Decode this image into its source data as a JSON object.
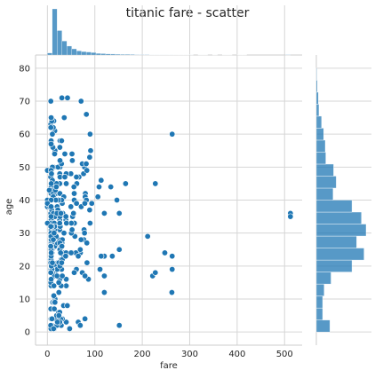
{
  "chart_data": {
    "type": "scatter",
    "title": "titanic fare - scatter",
    "xlabel": "fare",
    "ylabel": "age",
    "xlim": [
      -25,
      537
    ],
    "ylim": [
      -4,
      84
    ],
    "x_ticks": [
      0,
      100,
      200,
      300,
      400,
      500
    ],
    "y_ticks": [
      0,
      10,
      20,
      30,
      40,
      50,
      60,
      70,
      80
    ],
    "grid": true,
    "marginals": [
      "top-histogram-fare",
      "right-histogram-age"
    ],
    "colors": {
      "accent": "#1f77b4",
      "grid": "#d6d6d6",
      "spine": "#cccccc"
    },
    "points": [
      [
        7.25,
        22
      ],
      [
        71.28,
        38
      ],
      [
        7.92,
        26
      ],
      [
        53.1,
        35
      ],
      [
        8.05,
        35
      ],
      [
        51.86,
        54
      ],
      [
        21.08,
        2
      ],
      [
        11.13,
        27
      ],
      [
        30.07,
        14
      ],
      [
        16.7,
        4
      ],
      [
        26.55,
        58
      ],
      [
        8.05,
        20
      ],
      [
        31.28,
        39
      ],
      [
        16,
        55
      ],
      [
        29.13,
        2
      ],
      [
        13,
        31
      ],
      [
        7.23,
        35
      ],
      [
        7.9,
        34
      ],
      [
        263,
        19
      ],
      [
        7.88,
        15
      ],
      [
        146.52,
        40
      ],
      [
        82.17,
        66
      ],
      [
        76.73,
        28
      ],
      [
        80,
        42
      ],
      [
        83.48,
        21
      ],
      [
        73.5,
        18
      ],
      [
        61.18,
        19
      ],
      [
        35.5,
        24
      ],
      [
        263,
        23
      ],
      [
        39.69,
        3
      ],
      [
        56.5,
        40
      ],
      [
        34.38,
        23
      ],
      [
        18,
        42
      ],
      [
        7.23,
        36
      ],
      [
        13,
        32
      ],
      [
        7.83,
        19
      ],
      [
        7.9,
        28
      ],
      [
        22.03,
        3
      ],
      [
        15.5,
        44
      ],
      [
        30,
        58
      ],
      [
        39.69,
        14
      ],
      [
        29.13,
        22
      ],
      [
        26,
        31
      ],
      [
        10.46,
        25
      ],
      [
        27.72,
        45
      ],
      [
        13.79,
        28
      ],
      [
        12.29,
        18
      ],
      [
        7.75,
        42
      ],
      [
        9.35,
        2
      ],
      [
        12.88,
        20
      ],
      [
        13,
        14
      ],
      [
        26.25,
        28
      ],
      [
        7.13,
        30
      ],
      [
        61.98,
        45
      ],
      [
        15.05,
        33
      ],
      [
        21.68,
        21
      ],
      [
        35.5,
        65
      ],
      [
        90,
        33
      ],
      [
        7.8,
        33
      ],
      [
        136.78,
        23
      ],
      [
        247.52,
        24
      ],
      [
        39.69,
        45
      ],
      [
        15.5,
        18
      ],
      [
        7.23,
        7
      ],
      [
        26.25,
        16
      ],
      [
        7.55,
        1
      ],
      [
        7.05,
        2
      ],
      [
        15.85,
        9
      ],
      [
        7.05,
        27
      ],
      [
        31.39,
        4
      ],
      [
        7.78,
        4
      ],
      [
        10.5,
        32
      ],
      [
        29,
        14
      ],
      [
        151.55,
        2
      ],
      [
        151.55,
        25
      ],
      [
        221.78,
        17
      ],
      [
        78.85,
        4
      ],
      [
        26.55,
        50
      ],
      [
        14.45,
        1
      ],
      [
        8.05,
        44
      ],
      [
        133.65,
        44
      ],
      [
        13.42,
        11
      ],
      [
        7.77,
        40
      ],
      [
        8.46,
        29
      ],
      [
        46.9,
        1
      ],
      [
        11.24,
        9
      ],
      [
        15.5,
        26
      ],
      [
        26.55,
        45
      ],
      [
        52,
        24
      ],
      [
        49.5,
        33
      ],
      [
        66.6,
        47
      ],
      [
        164.87,
        45
      ],
      [
        30.5,
        71
      ],
      [
        151.55,
        36
      ],
      [
        262.38,
        12
      ],
      [
        211.34,
        29
      ],
      [
        512.33,
        36
      ],
      [
        512.33,
        35
      ],
      [
        71,
        70
      ],
      [
        227.53,
        45
      ],
      [
        227.53,
        18
      ],
      [
        65,
        3
      ],
      [
        120,
        17
      ],
      [
        263,
        60
      ],
      [
        120,
        12
      ],
      [
        79.2,
        4
      ],
      [
        110.88,
        19
      ],
      [
        120,
        36
      ],
      [
        120,
        23
      ],
      [
        79.65,
        41
      ],
      [
        78.27,
        50
      ],
      [
        26,
        48
      ],
      [
        108.9,
        44
      ],
      [
        7.75,
        32
      ],
      [
        24.15,
        21
      ],
      [
        26.25,
        34
      ],
      [
        19.5,
        5
      ],
      [
        8.66,
        16
      ],
      [
        39.4,
        24
      ],
      [
        14.46,
        33
      ],
      [
        55,
        36
      ],
      [
        13.5,
        50
      ],
      [
        7.85,
        28
      ],
      [
        22.36,
        28
      ],
      [
        15.25,
        54
      ],
      [
        6.24,
        22
      ],
      [
        8.05,
        45
      ],
      [
        9.5,
        24
      ],
      [
        21,
        27
      ],
      [
        113.28,
        23
      ],
      [
        7.14,
        63
      ],
      [
        10.5,
        29
      ],
      [
        9.84,
        30
      ],
      [
        76.29,
        48
      ],
      [
        15.55,
        61
      ],
      [
        30.7,
        27
      ],
      [
        7.65,
        19
      ],
      [
        8.66,
        20
      ],
      [
        42.4,
        71
      ],
      [
        14.45,
        20
      ],
      [
        34.02,
        8
      ],
      [
        7.73,
        14
      ],
      [
        15.1,
        36
      ],
      [
        7.25,
        58
      ],
      [
        31.39,
        22
      ],
      [
        9,
        37
      ],
      [
        26.29,
        42
      ],
      [
        19.96,
        2
      ],
      [
        23.45,
        6
      ],
      [
        9.59,
        4
      ],
      [
        28.5,
        26
      ],
      [
        49.5,
        48
      ],
      [
        8.69,
        27
      ],
      [
        69.55,
        24
      ],
      [
        12.65,
        36
      ],
      [
        15.9,
        35
      ],
      [
        38.5,
        23
      ],
      [
        7.78,
        47
      ],
      [
        12.35,
        62
      ],
      [
        77.29,
        31
      ],
      [
        34.65,
        41
      ],
      [
        24.15,
        12
      ],
      [
        10.52,
        50
      ],
      [
        8.85,
        57
      ],
      [
        14.11,
        32
      ],
      [
        7.23,
        30
      ],
      [
        26,
        45
      ],
      [
        30,
        19
      ],
      [
        11.5,
        18
      ],
      [
        9.48,
        25
      ],
      [
        83.16,
        49
      ],
      [
        7.9,
        18
      ],
      [
        90,
        60
      ],
      [
        57,
        33
      ],
      [
        61.38,
        39
      ],
      [
        39,
        34
      ],
      [
        91.08,
        55
      ],
      [
        89.1,
        37
      ],
      [
        27,
        32
      ],
      [
        26.25,
        25
      ],
      [
        52.55,
        52
      ],
      [
        16.1,
        10
      ],
      [
        13.42,
        64
      ],
      [
        36.75,
        54
      ],
      [
        6.5,
        26
      ],
      [
        6.95,
        47
      ],
      [
        20.53,
        19
      ],
      [
        56.5,
        42
      ],
      [
        57.98,
        29
      ],
      [
        9.22,
        64
      ],
      [
        31.5,
        28
      ],
      [
        8.14,
        43
      ],
      [
        0,
        38
      ],
      [
        0,
        49
      ],
      [
        0,
        33
      ],
      [
        0,
        40
      ],
      [
        5,
        38
      ],
      [
        4.01,
        43
      ],
      [
        6.45,
        29
      ],
      [
        12.52,
        42
      ],
      [
        16.7,
        43
      ],
      [
        42,
        8
      ],
      [
        73.5,
        51
      ],
      [
        13.86,
        28
      ],
      [
        50.5,
        33
      ],
      [
        14.5,
        17
      ],
      [
        26.39,
        20
      ],
      [
        60,
        24
      ],
      [
        7.88,
        31
      ],
      [
        81.86,
        51
      ],
      [
        7.75,
        22
      ],
      [
        25.47,
        3
      ],
      [
        20.25,
        17
      ],
      [
        7.05,
        18
      ],
      [
        65,
        23
      ],
      [
        14.4,
        9
      ],
      [
        35,
        30
      ],
      [
        7.73,
        26
      ],
      [
        18.75,
        29
      ],
      [
        25.93,
        33
      ],
      [
        7.73,
        22
      ],
      [
        30.07,
        40
      ],
      [
        10.17,
        19
      ],
      [
        12.28,
        41
      ],
      [
        19.26,
        45
      ],
      [
        27.9,
        4
      ],
      [
        20.58,
        38
      ],
      [
        7.31,
        15
      ],
      [
        22.52,
        50
      ],
      [
        7.86,
        16
      ],
      [
        7.25,
        62
      ],
      [
        55.9,
        44
      ],
      [
        14.5,
        7
      ],
      [
        15.74,
        31
      ],
      [
        7.83,
        25
      ],
      [
        7.63,
        22
      ],
      [
        23,
        40
      ],
      [
        106.43,
        41
      ],
      [
        32.5,
        36
      ],
      [
        13.7,
        14
      ],
      [
        7.92,
        58
      ],
      [
        31,
        26
      ],
      [
        82.27,
        40
      ],
      [
        7.75,
        49
      ],
      [
        10.5,
        46
      ],
      [
        17.8,
        40
      ],
      [
        39.6,
        48
      ],
      [
        15.02,
        32
      ],
      [
        26,
        34
      ],
      [
        86.5,
        16
      ],
      [
        79.2,
        17
      ],
      [
        9.5,
        19
      ],
      [
        7.52,
        20
      ],
      [
        26.55,
        35
      ],
      [
        29.7,
        51
      ],
      [
        83.16,
        27
      ],
      [
        69.3,
        25
      ],
      [
        10.5,
        60
      ],
      [
        7.23,
        70
      ],
      [
        93.5,
        39
      ],
      [
        24,
        15
      ],
      [
        7.25,
        21
      ],
      [
        78.85,
        39
      ],
      [
        27.75,
        24
      ],
      [
        13.5,
        11
      ],
      [
        22.03,
        37
      ],
      [
        50.5,
        30
      ],
      [
        26,
        3
      ],
      [
        7.23,
        18
      ],
      [
        7.88,
        28
      ],
      [
        11.5,
        56
      ],
      [
        71,
        28
      ],
      [
        113.28,
        46
      ],
      [
        26.55,
        47
      ],
      [
        7.75,
        57
      ],
      [
        40.13,
        33
      ],
      [
        9.5,
        32
      ],
      [
        7.8,
        40
      ],
      [
        8.3,
        20
      ],
      [
        7.5,
        30
      ],
      [
        89.1,
        53
      ],
      [
        26.55,
        52
      ],
      [
        20.21,
        36
      ],
      [
        39.69,
        16
      ],
      [
        26.25,
        27
      ],
      [
        25.93,
        6
      ],
      [
        69.3,
        2
      ],
      [
        7.05,
        26
      ],
      [
        10.5,
        21
      ],
      [
        7.75,
        35
      ],
      [
        15.9,
        9
      ],
      [
        8.05,
        45
      ],
      [
        13,
        1
      ],
      [
        26,
        33
      ],
      [
        0,
        39
      ],
      [
        8.66,
        48
      ],
      [
        7.23,
        32
      ],
      [
        8.05,
        29
      ],
      [
        30,
        21
      ],
      [
        61.18,
        47
      ],
      [
        50,
        24
      ],
      [
        18.79,
        44
      ],
      [
        7.88,
        23
      ],
      [
        7.88,
        38
      ],
      [
        14.11,
        30
      ],
      [
        7.92,
        65
      ],
      [
        21.08,
        3
      ],
      [
        78.27,
        30
      ],
      [
        39,
        35
      ],
      [
        26.28,
        56
      ],
      [
        49.5,
        38
      ],
      [
        52,
        31
      ],
      [
        24.15,
        5
      ],
      [
        31.39,
        17
      ],
      [
        56.5,
        18
      ],
      [
        30.5,
        26
      ],
      [
        36.75,
        47
      ],
      [
        12.47,
        28
      ],
      [
        28.5,
        36
      ],
      [
        8.05,
        24
      ]
    ],
    "fare_hist_counts": [
      15,
      336,
      178,
      102,
      65,
      45,
      30,
      25,
      22,
      18,
      12,
      10,
      8,
      7,
      6,
      5,
      5,
      4,
      3,
      3,
      3,
      2,
      2,
      2,
      2,
      2,
      1,
      1,
      1,
      2,
      0,
      1,
      1,
      0,
      1,
      0,
      1,
      1,
      0,
      1,
      1,
      0,
      0,
      0,
      0,
      0,
      0,
      0,
      0,
      3
    ],
    "fare_hist_range": [
      0,
      512.33
    ],
    "age_hist_counts": [
      26,
      12,
      12,
      15,
      28,
      68,
      91,
      77,
      95,
      86,
      68,
      32,
      38,
      33,
      18,
      17,
      14,
      10,
      5,
      4,
      2,
      1
    ],
    "age_hist_range": [
      0,
      80
    ]
  }
}
